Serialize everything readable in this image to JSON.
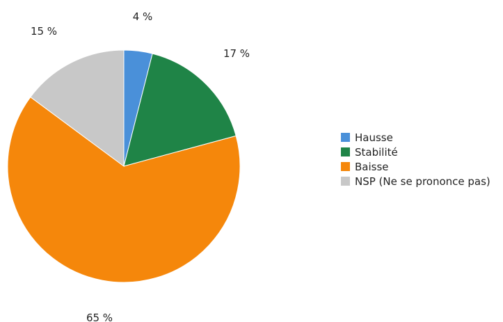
{
  "chart_data": {
    "type": "pie",
    "labels": [
      "Hausse",
      "Stabilité",
      "Baisse",
      "NSP (Ne se prononce pas)"
    ],
    "values": [
      4,
      17,
      65,
      15
    ],
    "value_labels": [
      "4 %",
      "17 %",
      "65 %",
      "15 %"
    ],
    "colors": [
      "#4a90d9",
      "#1f8447",
      "#f5870b",
      "#c8c8c8"
    ],
    "legend_position": "right",
    "start_angle": "12 o'clock",
    "direction": "clockwise"
  }
}
